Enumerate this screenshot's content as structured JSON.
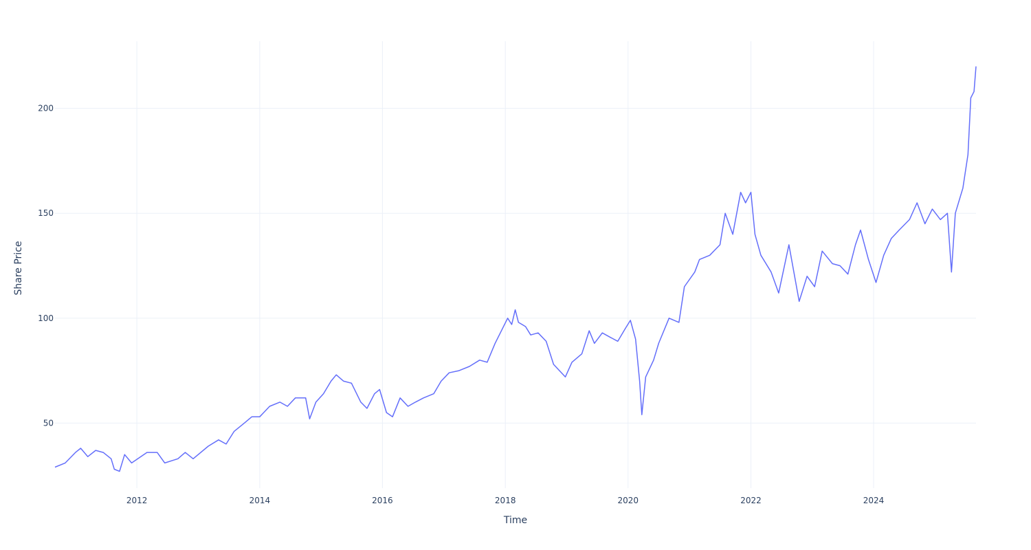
{
  "chart_data": {
    "type": "line",
    "xlabel": "Time",
    "ylabel": "Share Price",
    "xlim": [
      "2010-09-01",
      "2025-09-01"
    ],
    "ylim": [
      19,
      232
    ],
    "x_ticks": [
      "2012",
      "2014",
      "2016",
      "2018",
      "2020",
      "2022",
      "2024"
    ],
    "y_ticks": [
      50,
      100,
      150,
      200
    ],
    "grid": true,
    "line_color": "#636efa",
    "series": [
      {
        "name": "",
        "points": [
          [
            "2010-09-01",
            29
          ],
          [
            "2010-11-01",
            31
          ],
          [
            "2011-01-01",
            36
          ],
          [
            "2011-02-01",
            38
          ],
          [
            "2011-03-15",
            34
          ],
          [
            "2011-05-01",
            37
          ],
          [
            "2011-06-15",
            36
          ],
          [
            "2011-08-01",
            33
          ],
          [
            "2011-08-20",
            28
          ],
          [
            "2011-09-20",
            27
          ],
          [
            "2011-10-20",
            35
          ],
          [
            "2011-12-01",
            31
          ],
          [
            "2012-03-01",
            36
          ],
          [
            "2012-05-01",
            36
          ],
          [
            "2012-06-15",
            31
          ],
          [
            "2012-09-01",
            33
          ],
          [
            "2012-10-15",
            36
          ],
          [
            "2012-12-01",
            33
          ],
          [
            "2013-03-01",
            39
          ],
          [
            "2013-05-01",
            42
          ],
          [
            "2013-06-15",
            40
          ],
          [
            "2013-08-01",
            46
          ],
          [
            "2013-10-01",
            50
          ],
          [
            "2013-11-15",
            53
          ],
          [
            "2014-01-01",
            53
          ],
          [
            "2014-03-01",
            58
          ],
          [
            "2014-05-01",
            60
          ],
          [
            "2014-06-15",
            58
          ],
          [
            "2014-08-01",
            62
          ],
          [
            "2014-10-01",
            62
          ],
          [
            "2014-10-25",
            52
          ],
          [
            "2014-12-01",
            60
          ],
          [
            "2015-01-15",
            64
          ],
          [
            "2015-03-01",
            70
          ],
          [
            "2015-04-01",
            73
          ],
          [
            "2015-05-15",
            70
          ],
          [
            "2015-07-01",
            69
          ],
          [
            "2015-08-25",
            60
          ],
          [
            "2015-10-01",
            57
          ],
          [
            "2015-11-15",
            64
          ],
          [
            "2015-12-15",
            66
          ],
          [
            "2016-01-25",
            55
          ],
          [
            "2016-03-01",
            53
          ],
          [
            "2016-04-15",
            62
          ],
          [
            "2016-06-01",
            58
          ],
          [
            "2016-07-15",
            60
          ],
          [
            "2016-09-01",
            62
          ],
          [
            "2016-11-01",
            64
          ],
          [
            "2016-12-15",
            70
          ],
          [
            "2017-02-01",
            74
          ],
          [
            "2017-04-01",
            75
          ],
          [
            "2017-06-01",
            77
          ],
          [
            "2017-08-01",
            80
          ],
          [
            "2017-09-15",
            79
          ],
          [
            "2017-11-01",
            88
          ],
          [
            "2017-12-15",
            95
          ],
          [
            "2018-01-15",
            100
          ],
          [
            "2018-02-08",
            97
          ],
          [
            "2018-03-01",
            104
          ],
          [
            "2018-03-20",
            98
          ],
          [
            "2018-05-01",
            96
          ],
          [
            "2018-06-01",
            92
          ],
          [
            "2018-07-15",
            93
          ],
          [
            "2018-09-01",
            89
          ],
          [
            "2018-10-15",
            78
          ],
          [
            "2018-12-24",
            72
          ],
          [
            "2019-02-01",
            79
          ],
          [
            "2019-04-01",
            83
          ],
          [
            "2019-05-15",
            94
          ],
          [
            "2019-06-15",
            88
          ],
          [
            "2019-08-01",
            93
          ],
          [
            "2019-09-15",
            91
          ],
          [
            "2019-11-01",
            89
          ],
          [
            "2019-12-15",
            95
          ],
          [
            "2020-01-15",
            99
          ],
          [
            "2020-02-15",
            90
          ],
          [
            "2020-03-10",
            70
          ],
          [
            "2020-03-23",
            54
          ],
          [
            "2020-04-15",
            72
          ],
          [
            "2020-06-01",
            80
          ],
          [
            "2020-07-01",
            88
          ],
          [
            "2020-09-01",
            100
          ],
          [
            "2020-10-30",
            98
          ],
          [
            "2020-12-01",
            115
          ],
          [
            "2021-02-01",
            122
          ],
          [
            "2021-03-01",
            128
          ],
          [
            "2021-05-01",
            130
          ],
          [
            "2021-07-01",
            135
          ],
          [
            "2021-08-01",
            150
          ],
          [
            "2021-09-15",
            140
          ],
          [
            "2021-11-01",
            160
          ],
          [
            "2021-11-30",
            155
          ],
          [
            "2022-01-01",
            160
          ],
          [
            "2022-01-25",
            140
          ],
          [
            "2022-03-01",
            130
          ],
          [
            "2022-05-01",
            122
          ],
          [
            "2022-06-15",
            112
          ],
          [
            "2022-08-15",
            135
          ],
          [
            "2022-10-15",
            108
          ],
          [
            "2022-12-01",
            120
          ],
          [
            "2023-01-15",
            115
          ],
          [
            "2023-03-01",
            132
          ],
          [
            "2023-05-01",
            126
          ],
          [
            "2023-06-15",
            125
          ],
          [
            "2023-08-01",
            121
          ],
          [
            "2023-09-15",
            135
          ],
          [
            "2023-10-15",
            142
          ],
          [
            "2023-12-01",
            128
          ],
          [
            "2024-01-15",
            117
          ],
          [
            "2024-03-01",
            130
          ],
          [
            "2024-04-15",
            138
          ],
          [
            "2024-06-01",
            142
          ],
          [
            "2024-08-01",
            147
          ],
          [
            "2024-09-15",
            155
          ],
          [
            "2024-11-01",
            145
          ],
          [
            "2024-12-15",
            152
          ],
          [
            "2025-02-01",
            147
          ],
          [
            "2025-03-15",
            150
          ],
          [
            "2025-04-08",
            122
          ],
          [
            "2025-05-01",
            150
          ],
          [
            "2025-06-15",
            162
          ],
          [
            "2025-07-15",
            178
          ],
          [
            "2025-08-01",
            205
          ],
          [
            "2025-08-20",
            208
          ],
          [
            "2025-09-01",
            220
          ]
        ]
      }
    ]
  }
}
